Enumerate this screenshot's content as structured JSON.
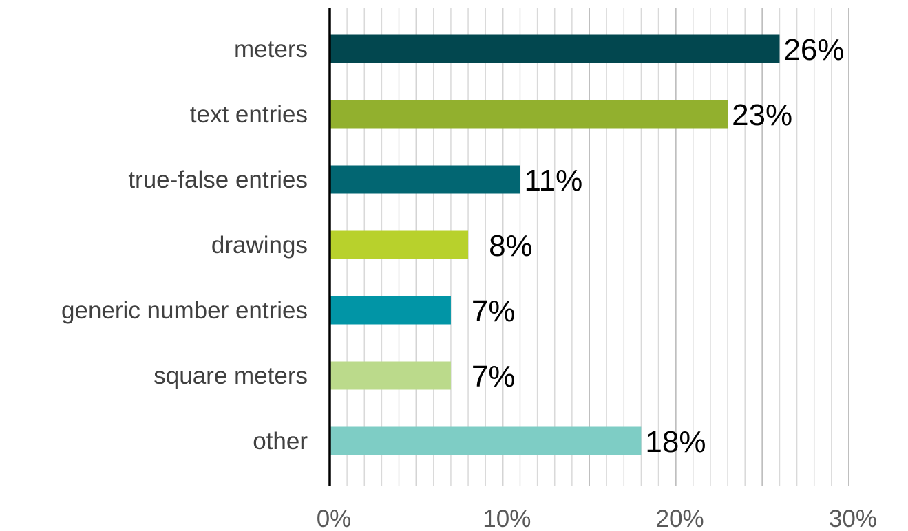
{
  "chart_data": {
    "type": "bar",
    "orientation": "horizontal",
    "categories": [
      "meters",
      "text entries",
      "true-false entries",
      "drawings",
      "generic number entries",
      "square meters",
      "other"
    ],
    "values": [
      26,
      23,
      11,
      8,
      7,
      7,
      18
    ],
    "value_labels": [
      "26%",
      "23%",
      "11%",
      "8%",
      "7%",
      "7%",
      "18%"
    ],
    "colors": [
      "#02474F",
      "#92B02E",
      "#026672",
      "#B8D12C",
      "#0195A6",
      "#BBDA8B",
      "#7ECDC5"
    ],
    "xlim": [
      0,
      30
    ],
    "xticks": [
      0,
      10,
      20,
      30
    ],
    "xtick_labels": [
      "0%",
      "10%",
      "20%",
      "30%"
    ],
    "minor_grid_step": 1,
    "grid": true,
    "title": "",
    "xlabel": "",
    "ylabel": ""
  }
}
